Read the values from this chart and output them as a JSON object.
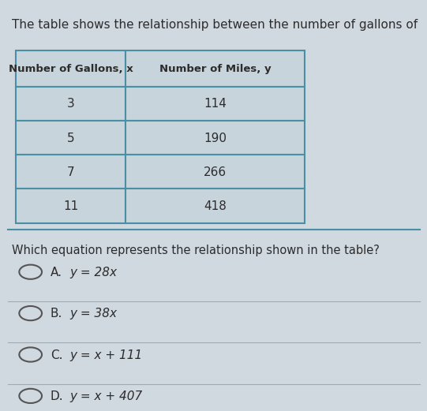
{
  "bg_color": "#d0d8e0",
  "title_text": "The table shows the relationship between the number of gallons of g",
  "title_fontsize": 11,
  "table_headers": [
    "Number of Gallons, x",
    "Number of Miles, y"
  ],
  "table_rows": [
    [
      "3",
      "114"
    ],
    [
      "5",
      "190"
    ],
    [
      "7",
      "266"
    ],
    [
      "11",
      "418"
    ]
  ],
  "question_text": "Which equation represents the relationship shown in the table?",
  "options": [
    [
      "A.",
      "y = 28x"
    ],
    [
      "B.",
      "y = 38x"
    ],
    [
      "C.",
      "y = x + 111"
    ],
    [
      "D.",
      "y = x + 407"
    ]
  ],
  "table_border_color": "#4a90a4",
  "table_bg_color": "#c8d4dc",
  "header_bg_color": "#c8d4dc",
  "text_color": "#2c2c2c",
  "sep_line_color": "#4a90a4",
  "option_sep_color": "#a0aab0",
  "circle_color": "#555555",
  "font_family": "DejaVu Sans"
}
